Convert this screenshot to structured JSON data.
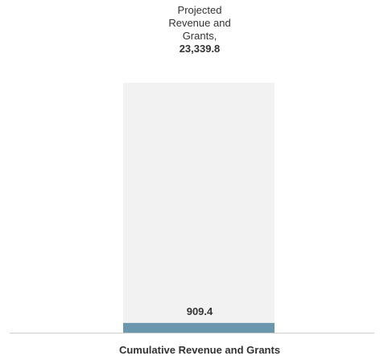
{
  "chart_data": {
    "type": "bar",
    "categories": [
      "Cumulative Revenue and Grants"
    ],
    "series": [
      {
        "values": [
          23339.8
        ]
      },
      {
        "values": [
          909.4
        ]
      }
    ],
    "projected_label": {
      "lines": [
        "Projected",
        "Revenue and",
        "Grants,"
      ],
      "value": "23,339.8"
    },
    "actual_label": "909.4",
    "colors": {
      "projected": "#f2f2f2",
      "actual": "#6a96ae",
      "baseline": "#cccccc"
    },
    "ylim": [
      0,
      23339.8
    ]
  }
}
